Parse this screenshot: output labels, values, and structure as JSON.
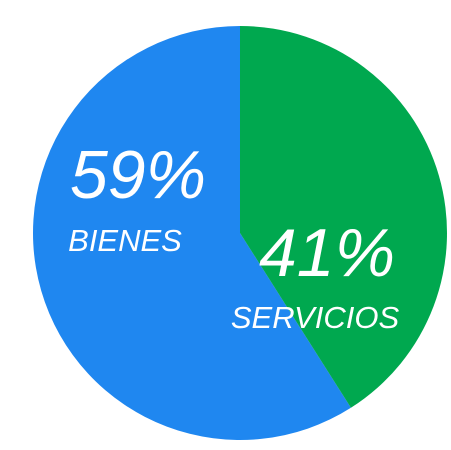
{
  "chart_data": {
    "type": "pie",
    "categories": [
      "BIENES",
      "SERVICIOS"
    ],
    "values": [
      59,
      41
    ],
    "value_labels": [
      "59%",
      "41%"
    ],
    "colors": [
      "#1f87f0",
      "#00a84f"
    ]
  }
}
